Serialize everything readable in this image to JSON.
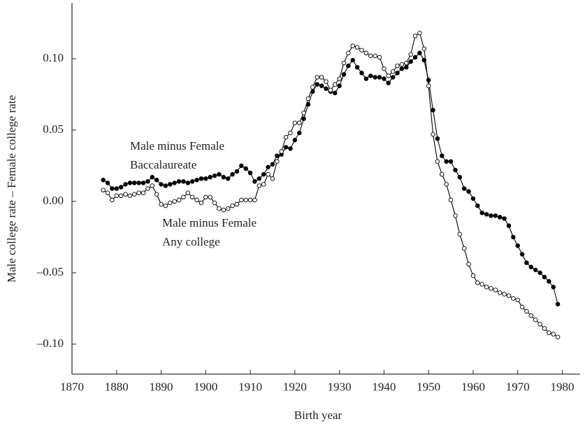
{
  "chart_data": {
    "type": "line",
    "xlabel": "Birth year",
    "ylabel": "Male college rate – Female college rate",
    "x": [
      1877,
      1878,
      1879,
      1880,
      1881,
      1882,
      1883,
      1884,
      1885,
      1886,
      1887,
      1888,
      1889,
      1890,
      1891,
      1892,
      1893,
      1894,
      1895,
      1896,
      1897,
      1898,
      1899,
      1900,
      1901,
      1902,
      1903,
      1904,
      1905,
      1906,
      1907,
      1908,
      1909,
      1910,
      1911,
      1912,
      1913,
      1914,
      1915,
      1916,
      1917,
      1918,
      1919,
      1920,
      1921,
      1922,
      1923,
      1924,
      1925,
      1926,
      1927,
      1928,
      1929,
      1930,
      1931,
      1932,
      1933,
      1934,
      1935,
      1936,
      1937,
      1938,
      1939,
      1940,
      1941,
      1942,
      1943,
      1944,
      1945,
      1946,
      1947,
      1948,
      1949,
      1950,
      1951,
      1952,
      1953,
      1954,
      1955,
      1956,
      1957,
      1958,
      1959,
      1960,
      1961,
      1962,
      1963,
      1964,
      1965,
      1966,
      1967,
      1968,
      1969,
      1970,
      1971,
      1972,
      1973,
      1974,
      1975,
      1976,
      1977,
      1978,
      1979
    ],
    "series": [
      {
        "label": [
          "Male minus Female",
          "Baccalaureate"
        ],
        "color": "#000000",
        "marker_fill": "#000000",
        "values": [
          0.015,
          0.013,
          0.009,
          0.009,
          0.01,
          0.012,
          0.013,
          0.013,
          0.013,
          0.013,
          0.014,
          0.017,
          0.015,
          0.012,
          0.011,
          0.012,
          0.013,
          0.014,
          0.014,
          0.013,
          0.014,
          0.015,
          0.016,
          0.016,
          0.017,
          0.018,
          0.019,
          0.017,
          0.016,
          0.019,
          0.021,
          0.025,
          0.023,
          0.02,
          0.014,
          0.016,
          0.019,
          0.024,
          0.026,
          0.032,
          0.033,
          0.038,
          0.037,
          0.043,
          0.048,
          0.058,
          0.068,
          0.077,
          0.082,
          0.081,
          0.079,
          0.077,
          0.076,
          0.081,
          0.089,
          0.095,
          0.099,
          0.094,
          0.09,
          0.086,
          0.088,
          0.087,
          0.087,
          0.086,
          0.083,
          0.087,
          0.09,
          0.093,
          0.094,
          0.098,
          0.101,
          0.104,
          0.099,
          0.085,
          0.064,
          0.044,
          0.032,
          0.028,
          0.028,
          0.022,
          0.017,
          0.009,
          0.007,
          0.002,
          -0.003,
          -0.008,
          -0.009,
          -0.01,
          -0.01,
          -0.011,
          -0.012,
          -0.017,
          -0.025,
          -0.031,
          -0.037,
          -0.043,
          -0.046,
          -0.048,
          -0.05,
          -0.053,
          -0.056,
          -0.06,
          -0.072
        ]
      },
      {
        "label": [
          "Male minus Female",
          "Any college"
        ],
        "color": "#000000",
        "marker_fill": "#ffffff",
        "values": [
          0.008,
          0.006,
          0.001,
          0.004,
          0.004,
          0.005,
          0.004,
          0.005,
          0.006,
          0.006,
          0.009,
          0.011,
          0.005,
          -0.002,
          -0.003,
          -0.001,
          0.0,
          0.001,
          0.003,
          0.006,
          0.003,
          0.001,
          -0.001,
          0.003,
          0.003,
          -0.001,
          -0.005,
          -0.006,
          -0.005,
          -0.003,
          -0.002,
          0.001,
          0.001,
          0.001,
          0.001,
          0.011,
          0.012,
          0.019,
          0.016,
          0.028,
          0.035,
          0.045,
          0.048,
          0.055,
          0.055,
          0.062,
          0.072,
          0.08,
          0.087,
          0.087,
          0.084,
          0.078,
          0.082,
          0.086,
          0.097,
          0.104,
          0.109,
          0.108,
          0.106,
          0.104,
          0.102,
          0.102,
          0.101,
          0.093,
          0.088,
          0.091,
          0.095,
          0.096,
          0.097,
          0.103,
          0.116,
          0.118,
          0.107,
          0.081,
          0.047,
          0.028,
          0.019,
          0.012,
          0.001,
          -0.01,
          -0.023,
          -0.033,
          -0.044,
          -0.052,
          -0.057,
          -0.058,
          -0.06,
          -0.061,
          -0.062,
          -0.064,
          -0.065,
          -0.066,
          -0.068,
          -0.069,
          -0.074,
          -0.077,
          -0.08,
          -0.083,
          -0.086,
          -0.089,
          -0.092,
          -0.093,
          -0.095
        ]
      }
    ],
    "xlim": [
      1870,
      1984
    ],
    "xticks": [
      1870,
      1880,
      1890,
      1900,
      1910,
      1920,
      1930,
      1940,
      1950,
      1960,
      1970,
      1980
    ],
    "ylim": [
      -0.121,
      0.139
    ],
    "yticks": [
      {
        "value": 0.1,
        "label": "0.10"
      },
      {
        "value": 0.05,
        "label": "0.05"
      },
      {
        "value": 0,
        "label": "0.00"
      },
      {
        "value": -0.05,
        "label": "–0.05"
      },
      {
        "value": -0.1,
        "label": "–0.10"
      }
    ],
    "grid": false
  }
}
